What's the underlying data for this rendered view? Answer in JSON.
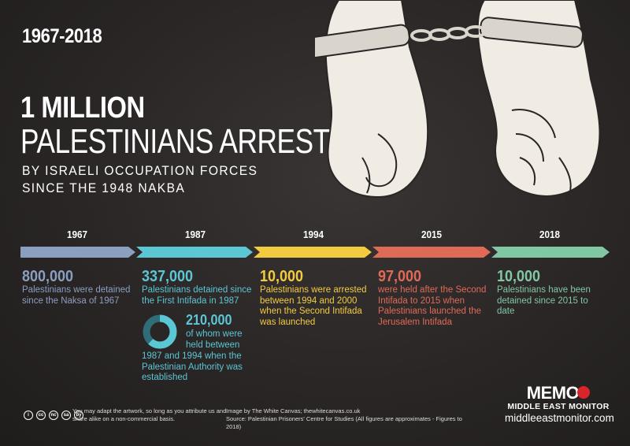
{
  "header": {
    "range": "1967-2018",
    "headline_count": "1 MILLION",
    "headline_subject": "PALESTINIANS ARRESTED",
    "subline_1": "BY ISRAELI OCCUPATION FORCES",
    "subline_2": "SINCE THE 1948 NAKBA"
  },
  "colors": {
    "1967": "#8b9fc1",
    "1987": "#5bc6d4",
    "1994": "#f3cb3f",
    "2015": "#e06a58",
    "2018": "#80c8a4"
  },
  "timeline": [
    {
      "year": "1967",
      "number": "800,000",
      "text": "Palestinians were detained since the Naksa of 1967"
    },
    {
      "year": "1987",
      "number": "337,000",
      "text": "Palestinians detained since the First Intifada in 1987"
    },
    {
      "year": "1994",
      "number": "10,000",
      "text": "Palestinians were arrested between 1994 and 2000 when the Second Intifada was launched"
    },
    {
      "year": "2015",
      "number": "97,000",
      "text": "were held after the Second Intifada to 2015 when Palestinians launched the Jerusalem Intifada"
    },
    {
      "year": "2018",
      "number": "10,000",
      "text": "Palestinians have been detained since 2015 to date"
    }
  ],
  "sub_stat": {
    "number": "210,000",
    "text_a": "of whom were held between",
    "text_b": "1987 and 1994 when the Palestinian Authority was established",
    "fraction": 0.62
  },
  "footer": {
    "license": "You may adapt the artwork, so long as you attribute us and share alike on a non-commercial basis.",
    "credit_1": "Image by The White Canvas; thewhitecanvas.co.uk",
    "credit_2": "Source: Palestinian Prisoners' Centre for Studies (All figures are approximates - Figures to 2018)",
    "cc_icons": [
      "cc",
      "by",
      "nc",
      "sa",
      "i"
    ]
  },
  "logo": {
    "word": "MEMO",
    "name": "MIDDLE EAST MONITOR",
    "url": "middleeastmonitor.com"
  }
}
